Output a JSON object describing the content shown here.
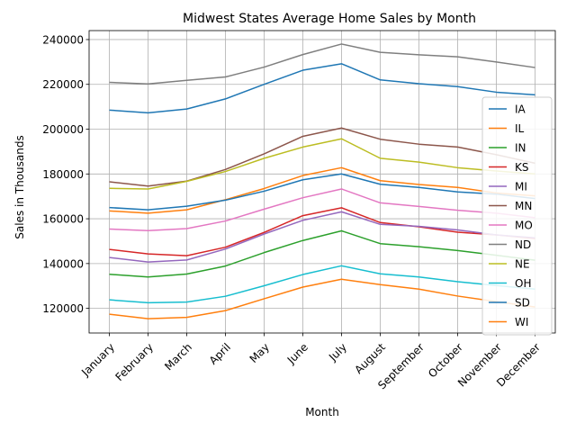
{
  "chart_data": {
    "type": "line",
    "title": "Midwest States Average Home Sales by Month",
    "xlabel": "Month",
    "ylabel": "Sales in Thousands",
    "ylim": [
      109000,
      244000
    ],
    "yticks": [
      120000,
      140000,
      160000,
      180000,
      200000,
      220000,
      240000
    ],
    "grid": true,
    "legend_position": "right",
    "categories": [
      "January",
      "February",
      "March",
      "April",
      "May",
      "June",
      "July",
      "August",
      "September",
      "October",
      "November",
      "December"
    ],
    "series": [
      {
        "name": "IA",
        "color": "#1f77b4",
        "values": [
          208500,
          207300,
          209000,
          213500,
          220000,
          226300,
          229200,
          222000,
          220300,
          219000,
          216500,
          215300
        ]
      },
      {
        "name": "IL",
        "color": "#ff7f0e",
        "values": [
          163500,
          162500,
          164000,
          168500,
          173500,
          179300,
          182800,
          177000,
          175300,
          174000,
          171500,
          170200
        ]
      },
      {
        "name": "IN",
        "color": "#2ca02c",
        "values": [
          135200,
          134000,
          135300,
          138900,
          144900,
          150300,
          154600,
          148900,
          147500,
          145800,
          143700,
          141500
        ]
      },
      {
        "name": "KS",
        "color": "#d62728",
        "values": [
          146300,
          144300,
          143500,
          147300,
          153900,
          161400,
          164900,
          158300,
          156400,
          154000,
          152800,
          151200
        ]
      },
      {
        "name": "MI",
        "color": "#9467bd",
        "values": [
          142700,
          140700,
          141600,
          146500,
          153200,
          159300,
          163100,
          157500,
          156600,
          155000,
          152800,
          151500
        ]
      },
      {
        "name": "MN",
        "color": "#8c564b",
        "values": [
          176500,
          174600,
          176800,
          182000,
          189000,
          196800,
          200500,
          195500,
          193300,
          192000,
          188600,
          184800
        ]
      },
      {
        "name": "MO",
        "color": "#e377c2",
        "values": [
          155400,
          154700,
          155600,
          159000,
          164300,
          169400,
          173300,
          167100,
          165500,
          163800,
          162500,
          160500
        ]
      },
      {
        "name": "ND",
        "color": "#7f7f7f",
        "values": [
          220900,
          220200,
          221800,
          223300,
          227700,
          233300,
          238000,
          234300,
          233200,
          232300,
          230000,
          227500
        ]
      },
      {
        "name": "NE",
        "color": "#bcbd22",
        "values": [
          173600,
          173300,
          176700,
          181100,
          187000,
          192000,
          195700,
          187000,
          185300,
          182800,
          181300,
          180000
        ]
      },
      {
        "name": "OH",
        "color": "#17becf",
        "values": [
          123800,
          122500,
          122800,
          125400,
          130100,
          135100,
          139000,
          135400,
          134000,
          131900,
          130200,
          128600
        ]
      },
      {
        "name": "SD",
        "color": "#1f77b4",
        "values": [
          165000,
          164000,
          165600,
          168300,
          172300,
          177400,
          180000,
          175400,
          174000,
          172000,
          171000,
          169000
        ]
      },
      {
        "name": "WI",
        "color": "#ff7f0e",
        "values": [
          117400,
          115400,
          116000,
          119000,
          124300,
          129500,
          133000,
          130600,
          128600,
          125500,
          123000,
          120600
        ]
      }
    ]
  }
}
